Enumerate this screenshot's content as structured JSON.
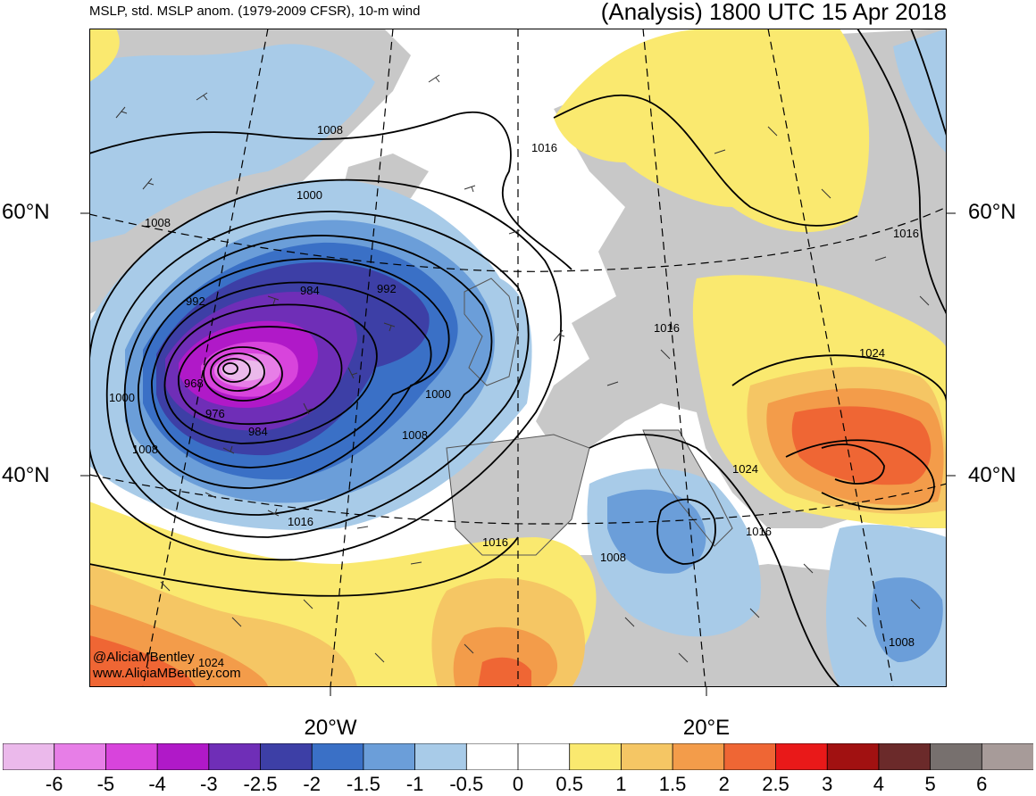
{
  "header": {
    "subtitle": "MSLP, std. MSLP anom. (1979-2009 CFSR), 10-m wind",
    "title": "(Analysis) 1800 UTC 15 Apr 2018"
  },
  "axes": {
    "lat_labels": [
      "60°N",
      "40°N"
    ],
    "lon_labels": [
      "20°W",
      "20°E"
    ]
  },
  "credits": [
    "@AliciaMBentley",
    "www.AliciaMBentley.com"
  ],
  "isobar_labels": [
    "1008",
    "1016",
    "1000",
    "1008",
    "992",
    "984",
    "992",
    "968",
    "976",
    "984",
    "1000",
    "1000",
    "1008",
    "1008",
    "1016",
    "1016",
    "1016",
    "1024",
    "1024",
    "1016",
    "1016",
    "1008",
    "1008",
    "1024"
  ],
  "colorbar": {
    "labels": [
      "-6",
      "-5",
      "-4",
      "-3",
      "-2.5",
      "-2",
      "-1.5",
      "-1",
      "-0.5",
      "0",
      "0.5",
      "1",
      "1.5",
      "2",
      "2.5",
      "3",
      "4",
      "5",
      "6"
    ],
    "colors": [
      "#ebb9eb",
      "#e77ee7",
      "#d844dc",
      "#b019c8",
      "#6f2eb7",
      "#3d3fa6",
      "#3a70c6",
      "#6b9ed9",
      "#a8cbe8",
      "#ffffff",
      "#ffffff",
      "#fae96f",
      "#f5c664",
      "#f39c4a",
      "#ef6634",
      "#e91919",
      "#a11111",
      "#6b2a2a",
      "#77706e",
      "#a79b99"
    ]
  },
  "colors": {
    "land": "#c8c8c8",
    "ocean": "#ffffff",
    "isobar": "#000000"
  }
}
